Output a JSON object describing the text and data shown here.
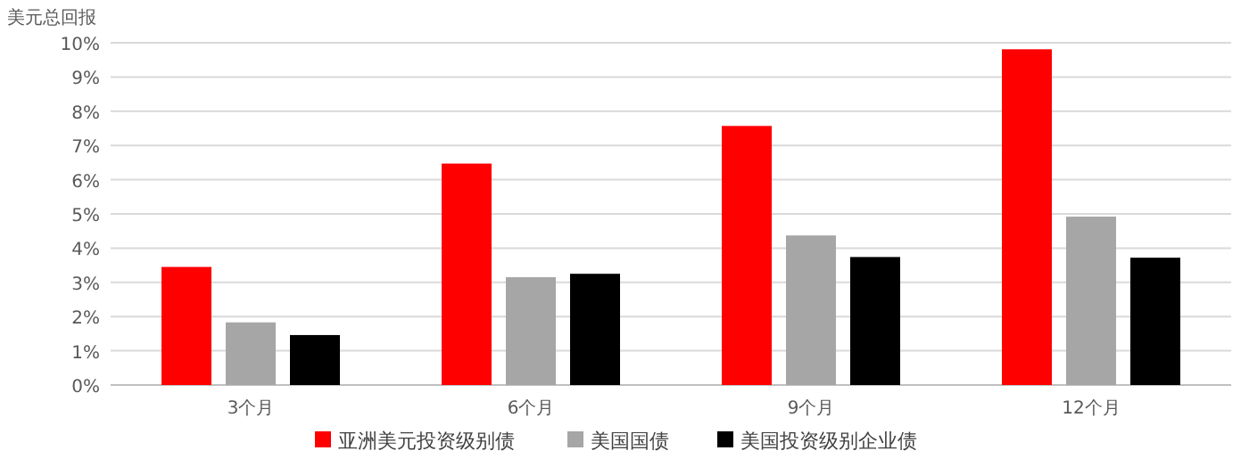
{
  "chart_data": {
    "type": "bar",
    "ylabel": "美元总回报",
    "categories": [
      "3个月",
      "6个月",
      "9个月",
      "12个月"
    ],
    "series": [
      {
        "name": "亚洲美元投资级别债",
        "color": "#ff0000",
        "values": [
          3.45,
          6.47,
          7.57,
          9.81
        ]
      },
      {
        "name": "美国国债",
        "color": "#a6a6a6",
        "values": [
          1.83,
          3.15,
          4.37,
          4.92
        ]
      },
      {
        "name": "美国投资级别企业债",
        "color": "#000000",
        "values": [
          1.46,
          3.25,
          3.74,
          3.72
        ]
      }
    ],
    "ylim": [
      0,
      10
    ],
    "yticks": [
      {
        "value": 0,
        "label": "0%"
      },
      {
        "value": 1,
        "label": "1%"
      },
      {
        "value": 2,
        "label": "2%"
      },
      {
        "value": 3,
        "label": "3%"
      },
      {
        "value": 4,
        "label": "4%"
      },
      {
        "value": 5,
        "label": "5%"
      },
      {
        "value": 6,
        "label": "6%"
      },
      {
        "value": 7,
        "label": "7%"
      },
      {
        "value": 8,
        "label": "8%"
      },
      {
        "value": 9,
        "label": "9%"
      },
      {
        "value": 10,
        "label": "10%"
      }
    ],
    "grid": "y",
    "legend": "bottom"
  }
}
